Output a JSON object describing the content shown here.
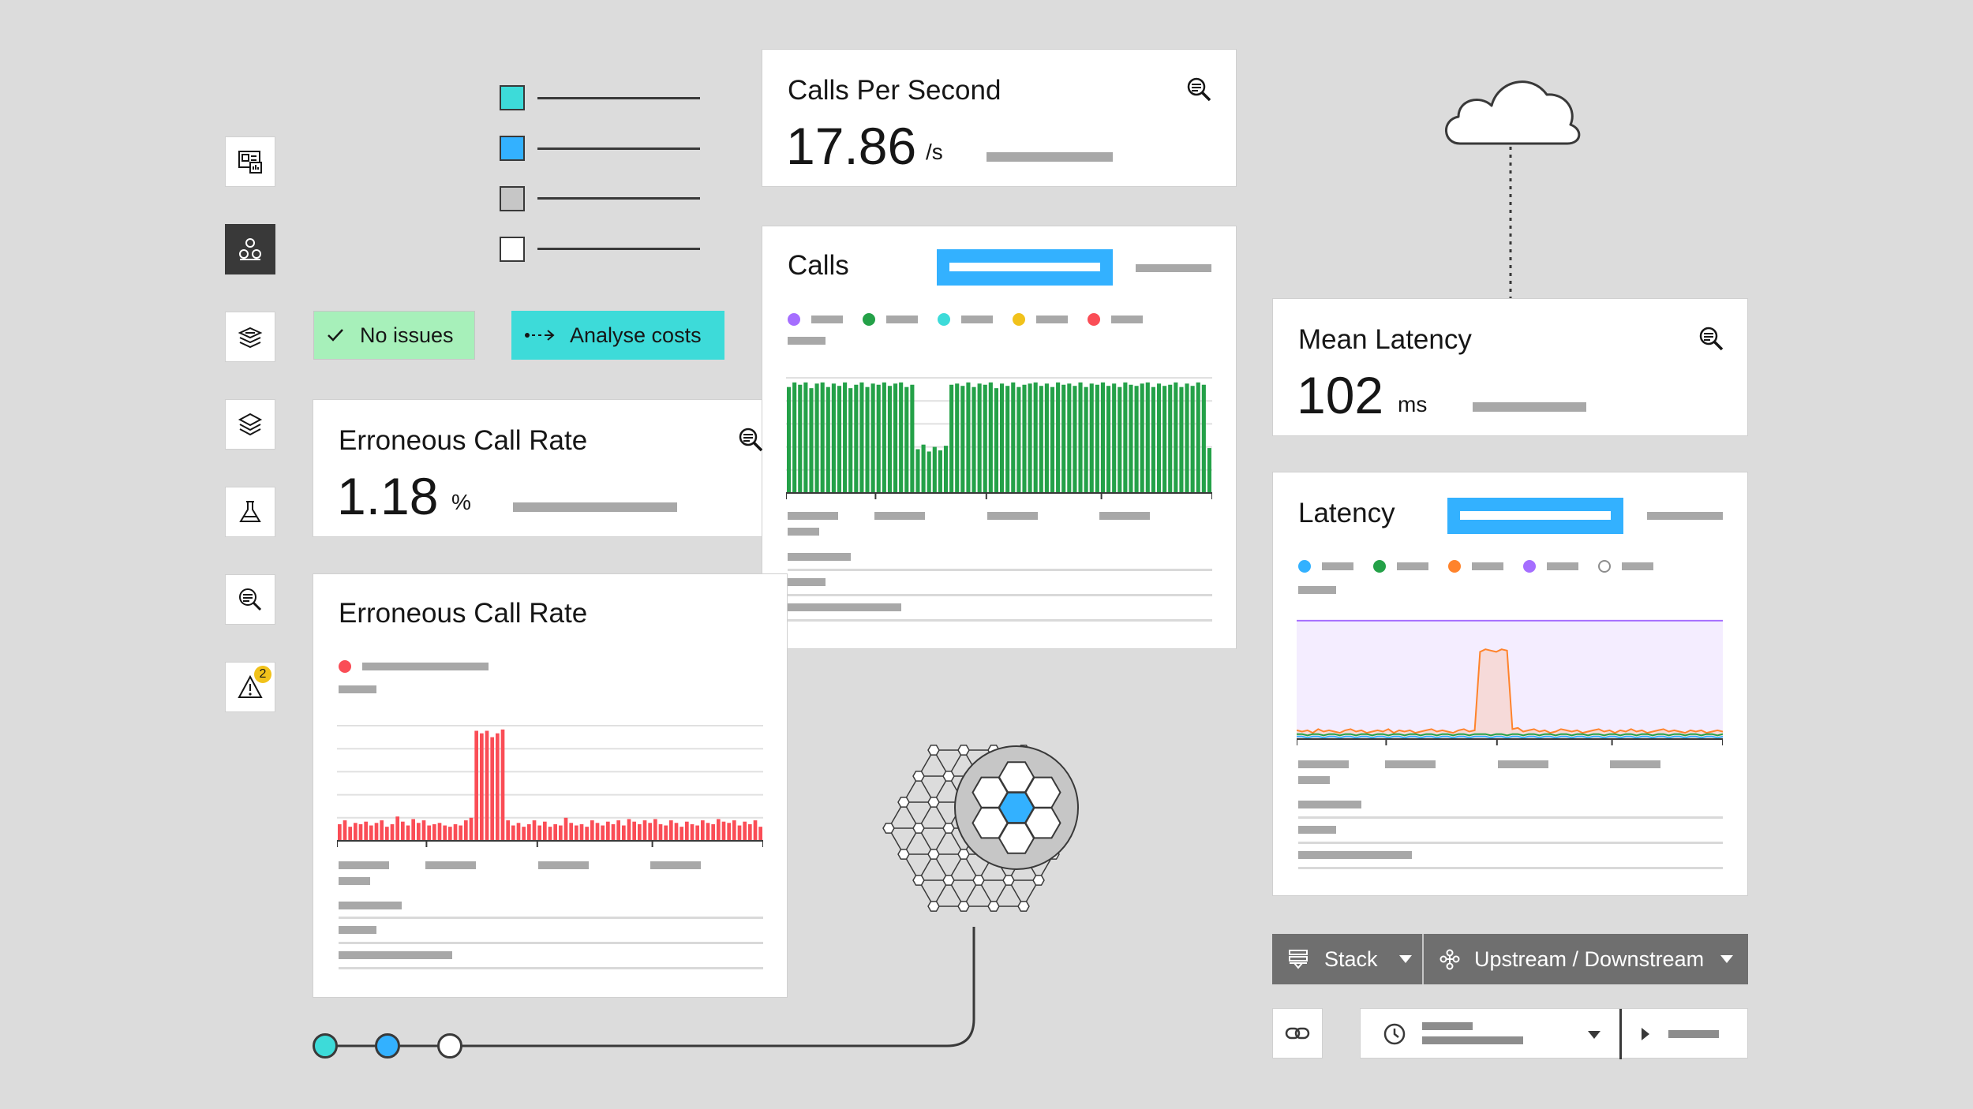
{
  "sidebar": {
    "items": [
      {
        "name": "dashboard-icon"
      },
      {
        "name": "application-graph-icon",
        "active": true
      },
      {
        "name": "infrastructure-icon"
      },
      {
        "name": "layers-icon"
      },
      {
        "name": "flask-icon"
      },
      {
        "name": "analyze-icon"
      },
      {
        "name": "alert-icon",
        "badge": "2"
      }
    ]
  },
  "legend_swatches": {
    "colors": [
      "#3ddbd9",
      "#33b1ff",
      "#c6c6c6",
      "#ffffff"
    ]
  },
  "status": {
    "no_issues_label": "No issues",
    "analyse_costs_label": "Analyse costs"
  },
  "calls_per_second": {
    "title": "Calls Per Second",
    "value": "17.86",
    "unit": "/s"
  },
  "erroneous_rate_kpi": {
    "title": "Erroneous Call Rate",
    "value": "1.18",
    "unit": "%"
  },
  "mean_latency": {
    "title": "Mean Latency",
    "value": "102",
    "unit": "ms"
  },
  "calls_chart": {
    "title": "Calls",
    "legend_colors": [
      "#a56eff",
      "#24a148",
      "#3ddbd9",
      "#f1c21b",
      "#fa4d56"
    ]
  },
  "erroneous_chart": {
    "title": "Erroneous Call Rate",
    "legend_color": "#fa4d56"
  },
  "latency_chart": {
    "title": "Latency",
    "legend_colors": [
      "#33b1ff",
      "#24a148",
      "#ff832b",
      "#a56eff",
      "#ffffff"
    ]
  },
  "toolbar": {
    "stack_label": "Stack",
    "updown_label": "Upstream / Downstream"
  },
  "chart_data": [
    {
      "type": "bar",
      "title": "Calls",
      "series": [
        {
          "values": [
            9.2,
            9.6,
            9.4,
            9.6,
            9.1,
            9.5,
            9.6,
            9.2,
            9.5,
            9.3,
            9.6,
            9.1,
            9.4,
            9.6,
            9.2,
            9.5,
            9.4,
            9.6,
            9.3,
            9.5,
            9.6,
            9.2,
            9.4,
            3.8,
            4.2,
            3.6,
            4.0,
            3.7,
            4.1,
            9.4,
            9.5,
            9.3,
            9.6,
            9.2,
            9.5,
            9.4,
            9.6,
            9.1,
            9.5,
            9.3,
            9.6,
            9.2,
            9.4,
            9.5,
            9.6,
            9.3,
            9.5,
            9.2,
            9.6,
            9.4,
            9.5,
            9.3,
            9.6,
            9.2,
            9.5,
            9.4,
            9.6,
            9.3,
            9.5,
            9.2,
            9.6,
            9.4,
            9.3,
            9.5,
            9.6,
            9.2,
            9.5,
            9.3,
            9.4,
            9.6,
            9.2,
            9.5,
            9.3,
            9.6,
            9.4,
            3.9
          ]
        }
      ],
      "ylim": [
        0,
        10
      ]
    },
    {
      "type": "bar",
      "title": "Erroneous Call Rate",
      "series": [
        {
          "values": [
            1.3,
            1.6,
            1.1,
            1.4,
            1.3,
            1.5,
            1.2,
            1.4,
            1.6,
            1.1,
            1.3,
            1.9,
            1.5,
            1.2,
            1.7,
            1.4,
            1.6,
            1.2,
            1.3,
            1.4,
            1.2,
            1.1,
            1.3,
            1.2,
            1.6,
            1.8,
            8.6,
            8.4,
            8.6,
            8.1,
            8.4,
            8.7,
            1.6,
            1.2,
            1.4,
            1.1,
            1.3,
            1.6,
            1.2,
            1.5,
            1.1,
            1.3,
            1.2,
            1.8,
            1.4,
            1.2,
            1.3,
            1.1,
            1.6,
            1.4,
            1.2,
            1.5,
            1.3,
            1.6,
            1.2,
            1.7,
            1.5,
            1.3,
            1.6,
            1.4,
            1.7,
            1.3,
            1.2,
            1.6,
            1.4,
            1.1,
            1.5,
            1.3,
            1.2,
            1.6,
            1.4,
            1.3,
            1.7,
            1.5,
            1.4,
            1.6,
            1.2,
            1.5,
            1.3,
            1.6,
            1.1
          ]
        }
      ],
      "ylim": [
        0,
        9
      ]
    },
    {
      "type": "area",
      "title": "Latency",
      "series": [
        {
          "color": "#a56eff",
          "values": [
            95,
            95,
            95,
            95,
            95,
            95,
            95,
            95,
            95,
            95,
            95,
            95,
            95,
            95,
            95,
            95,
            95,
            95,
            95,
            95,
            95,
            95,
            95,
            95,
            95,
            95,
            95,
            95,
            95,
            95,
            95,
            95,
            95,
            95,
            95,
            95,
            95,
            95,
            95,
            95,
            95,
            95,
            95,
            95,
            95,
            95,
            95,
            95,
            95,
            95,
            95,
            95,
            95,
            95,
            95,
            95,
            95,
            95,
            95,
            95,
            95,
            95,
            95,
            95,
            95,
            95,
            95,
            95,
            95,
            95,
            95,
            95,
            95,
            95,
            95,
            95,
            95,
            95,
            95,
            95
          ]
        },
        {
          "color": "#ff832b",
          "values": [
            7,
            6,
            7,
            5,
            8,
            6,
            7,
            6,
            5,
            7,
            8,
            6,
            7,
            5,
            6,
            7,
            6,
            8,
            5,
            7,
            6,
            7,
            5,
            6,
            7,
            8,
            6,
            7,
            6,
            5,
            7,
            8,
            6,
            7,
            70,
            72,
            71,
            70,
            72,
            71,
            8,
            9,
            6,
            7,
            8,
            6,
            7,
            5,
            6,
            8,
            7,
            6,
            7,
            5,
            6,
            7,
            8,
            6,
            7,
            5,
            7,
            6,
            8,
            6,
            7,
            5,
            6,
            7,
            8,
            6,
            7,
            6,
            5,
            7,
            6,
            7,
            5,
            6,
            7,
            6
          ]
        },
        {
          "color": "#24a148",
          "values": [
            4,
            4,
            3,
            4,
            4,
            3,
            4,
            4,
            3,
            4,
            4,
            3,
            4,
            4,
            3,
            4,
            4,
            3,
            4,
            4,
            3,
            4,
            4,
            3,
            4,
            4,
            3,
            4,
            4,
            3,
            4,
            4,
            3,
            4,
            4,
            4,
            3,
            4,
            4,
            3,
            4,
            4,
            3,
            4,
            4,
            3,
            4,
            4,
            3,
            4,
            4,
            3,
            4,
            4,
            3,
            4,
            4,
            3,
            4,
            4,
            3,
            4,
            4,
            3,
            4,
            4,
            3,
            4,
            4,
            3,
            4,
            4,
            3,
            4,
            4,
            3,
            4,
            4,
            3,
            4
          ]
        },
        {
          "color": "#33b1ff",
          "values": [
            2,
            2,
            1,
            2,
            2,
            1,
            2,
            2,
            1,
            2,
            2,
            1,
            2,
            2,
            1,
            2,
            2,
            1,
            2,
            2,
            1,
            2,
            2,
            1,
            2,
            2,
            1,
            2,
            2,
            1,
            2,
            2,
            1,
            2,
            2,
            2,
            1,
            2,
            2,
            1,
            2,
            2,
            1,
            2,
            2,
            1,
            2,
            2,
            1,
            2,
            2,
            1,
            2,
            2,
            1,
            2,
            2,
            1,
            2,
            2,
            1,
            2,
            2,
            1,
            2,
            2,
            1,
            2,
            2,
            1,
            2,
            2,
            1,
            2,
            2,
            1,
            2,
            2,
            1,
            2
          ]
        }
      ],
      "ylim": [
        0,
        100
      ]
    }
  ]
}
